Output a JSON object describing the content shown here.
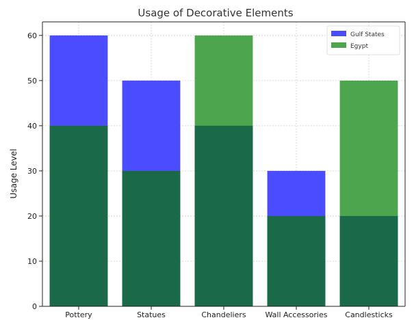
{
  "chart_data": {
    "type": "bar",
    "title": "Usage of Decorative Elements",
    "xlabel": "",
    "ylabel": "Usage Level",
    "ylim": [
      0,
      63
    ],
    "yticks": [
      0,
      10,
      20,
      30,
      40,
      50,
      60
    ],
    "categories": [
      "Pottery",
      "Statues",
      "Chandeliers",
      "Wall Accessories",
      "Candlesticks"
    ],
    "series": [
      {
        "name": "Gulf States",
        "values": [
          60,
          50,
          40,
          30,
          20
        ],
        "color": "#4b4bff"
      },
      {
        "name": "Egypt",
        "values": [
          40,
          30,
          60,
          20,
          50
        ],
        "color": "#4da64d"
      }
    ],
    "overlap_color": "#1a6a4a",
    "grid": true,
    "legend": "top-right"
  }
}
